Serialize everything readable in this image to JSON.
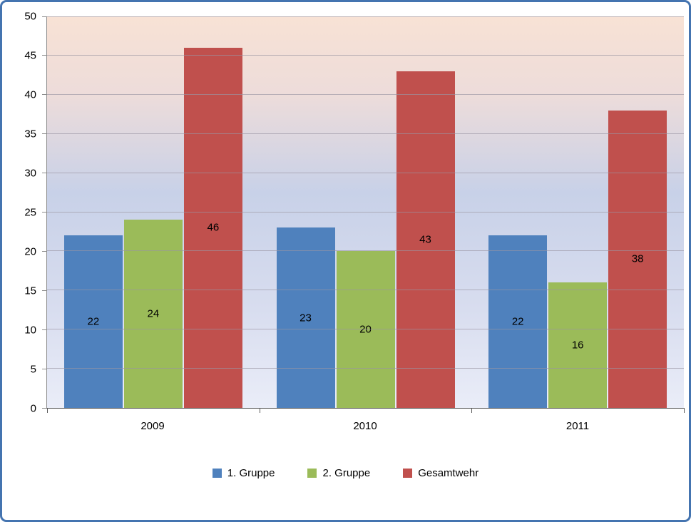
{
  "chart_data": {
    "type": "bar",
    "categories": [
      "2009",
      "2010",
      "2011"
    ],
    "series": [
      {
        "name": "1. Gruppe",
        "color": "#4F81BD",
        "values": [
          22,
          23,
          22
        ]
      },
      {
        "name": "2. Gruppe",
        "color": "#9BBB59",
        "values": [
          24,
          20,
          16
        ]
      },
      {
        "name": "Gesamtwehr",
        "color": "#C0504D",
        "values": [
          46,
          43,
          38
        ]
      }
    ],
    "title": "",
    "xlabel": "",
    "ylabel": "",
    "ylim": [
      0,
      50
    ],
    "yticks": [
      0,
      5,
      10,
      15,
      20,
      25,
      30,
      35,
      40,
      45,
      50
    ],
    "grid": true,
    "data_labels": true,
    "legend_position": "bottom"
  },
  "colors": {
    "frame_border": "#4474B0",
    "plot_grad_top": "#F8E2D5",
    "plot_grad_upper": "#EDDCDA",
    "plot_grad_mid": "#C8D1E8",
    "plot_grad_lower": "#D8DDEF",
    "plot_grad_bottom": "#EAEDF8",
    "gridline": "#9A95A3",
    "axis_line": "#595959",
    "axis_line_light": "#8C8C8C",
    "text": "#000000"
  }
}
